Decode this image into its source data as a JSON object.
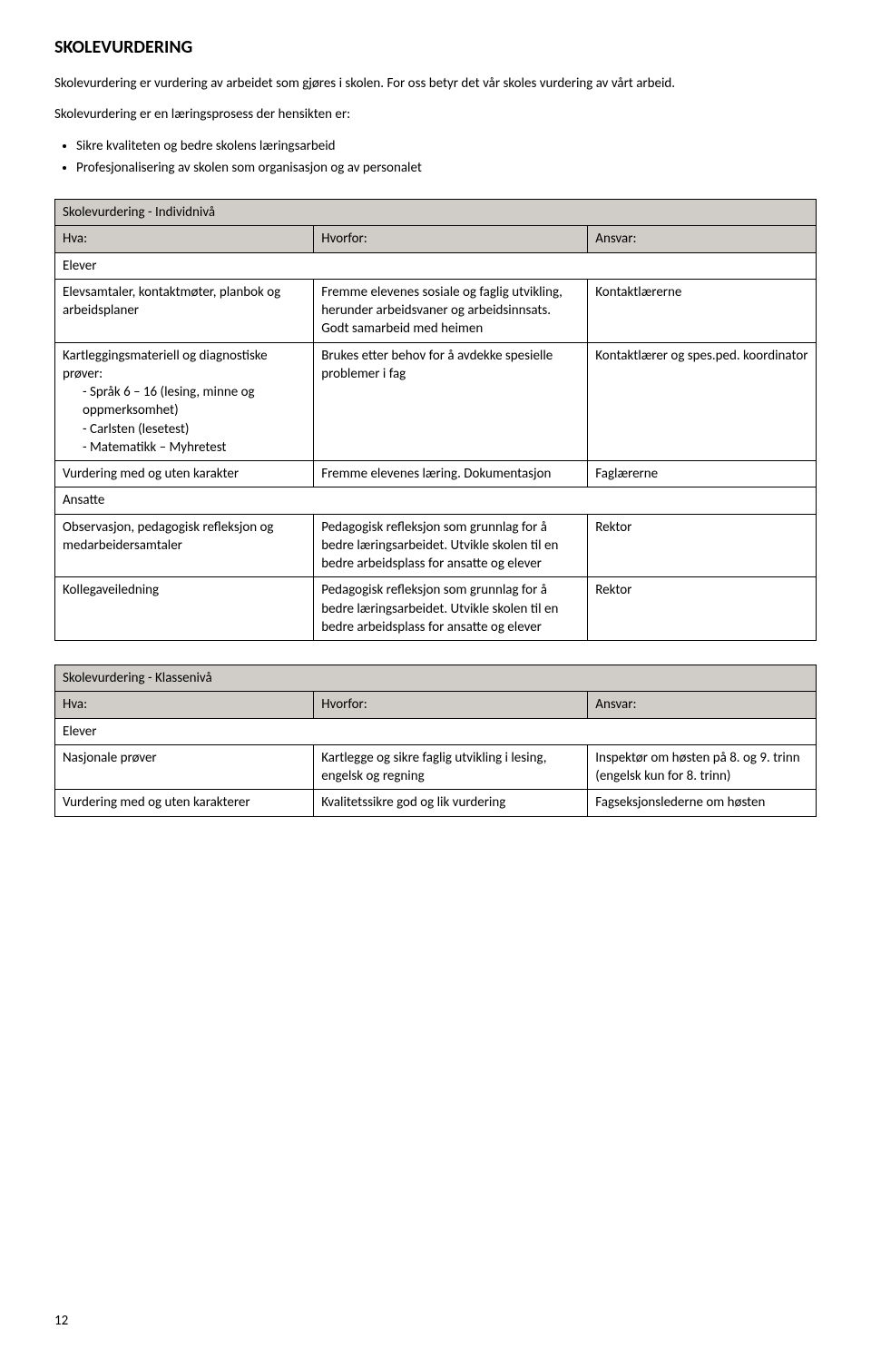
{
  "heading": "SKOLEVURDERING",
  "intro1": "Skolevurdering er vurdering av arbeidet som gjøres i skolen. For oss betyr det vår skoles vurdering av vårt arbeid.",
  "intro2": "Skolevurdering er en læringsprosess der hensikten er:",
  "bullets": [
    "Sikre kvaliteten og bedre skolens læringsarbeid",
    "Profesjonalisering av skolen som organisasjon og av personalet"
  ],
  "table1": {
    "title": "Skolevurdering - Individnivå",
    "headers": {
      "hva": "Hva:",
      "hvorfor": "Hvorfor:",
      "ansvar": "Ansvar:"
    },
    "group1": "Elever",
    "rows1": [
      {
        "hva": "Elevsamtaler, kontaktmøter, planbok og arbeidsplaner",
        "hvorfor": "Fremme elevenes sosiale og faglig utvikling, herunder arbeidsvaner og arbeidsinnsats. Godt samarbeid med heimen",
        "ansvar": "Kontaktlærerne"
      },
      {
        "hva_lead": "Kartleggingsmateriell og diagnostiske prøver:",
        "hva_items": [
          "Språk 6 – 16 (lesing, minne og oppmerksomhet)",
          "Carlsten (lesetest)",
          "Matematikk – Myhretest"
        ],
        "hvorfor": "Brukes etter behov for å avdekke spesielle problemer i fag",
        "ansvar": "Kontaktlærer og spes.ped. koordinator"
      },
      {
        "hva": "Vurdering med og uten karakter",
        "hvorfor": "Fremme elevenes læring. Dokumentasjon",
        "ansvar": "Faglærerne"
      }
    ],
    "group2": "Ansatte",
    "rows2": [
      {
        "hva": "Observasjon, pedagogisk refleksjon og medarbeidersamtaler",
        "hvorfor": "Pedagogisk refleksjon som grunnlag for å bedre læringsarbeidet. Utvikle skolen til en bedre arbeidsplass for ansatte og elever",
        "ansvar": "Rektor"
      },
      {
        "hva": "Kollegaveiledning",
        "hvorfor": "Pedagogisk refleksjon som grunnlag for å bedre læringsarbeidet. Utvikle skolen til en bedre arbeidsplass for ansatte og elever",
        "ansvar": "Rektor"
      }
    ]
  },
  "table2": {
    "title": "Skolevurdering - Klassenivå",
    "headers": {
      "hva": "Hva:",
      "hvorfor": "Hvorfor:",
      "ansvar": "Ansvar:"
    },
    "group1": "Elever",
    "rows": [
      {
        "hva": "Nasjonale prøver",
        "hvorfor": "Kartlegge og sikre faglig utvikling i lesing, engelsk og regning",
        "ansvar": "Inspektør om høsten på 8. og 9. trinn (engelsk kun for 8. trinn)"
      },
      {
        "hva": "Vurdering med og uten karakterer",
        "hvorfor": "Kvalitetssikre god og lik vurdering",
        "ansvar": "Fagseksjonslederne om høsten"
      }
    ]
  },
  "pagenum": "12"
}
